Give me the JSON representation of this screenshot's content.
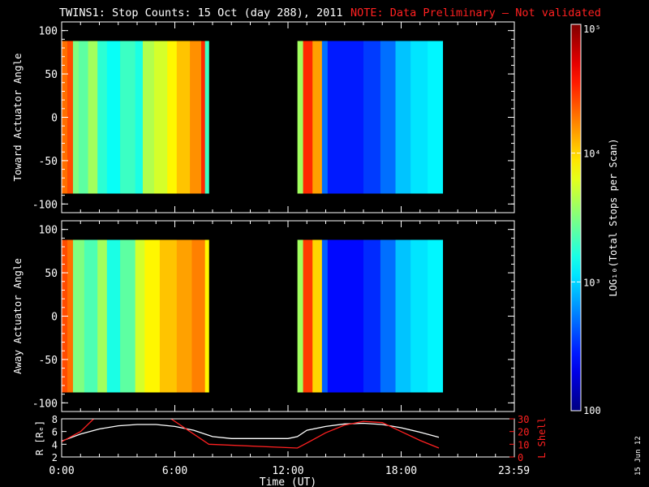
{
  "title": "TWINS1: Stop Counts: 15 Oct (day 288), 2011",
  "note": "NOTE: Data Preliminary – Not validated",
  "date_stamp": "15 Jun 12",
  "colors": {
    "background": "#000000",
    "axis": "#ffffff",
    "note": "#ff2020",
    "r_line": "#ffffff",
    "lshell_line": "#ff2020"
  },
  "chart_data": [
    {
      "type": "heatmap",
      "panel": "toward",
      "ylabel": "Toward Actuator Angle",
      "ylim": [
        -110,
        110
      ],
      "yticks": [
        100,
        50,
        0,
        -50,
        -100
      ],
      "xlim_hours": [
        0,
        24
      ],
      "data_ylim": [
        -88,
        88
      ],
      "segments": [
        {
          "x_start": 0.0,
          "x_end": 7.8,
          "bands": [
            [
              0.0,
              0.3,
              4.3
            ],
            [
              0.3,
              0.6,
              4.4
            ],
            [
              0.6,
              0.9,
              3.5
            ],
            [
              0.9,
              1.4,
              3.4
            ],
            [
              1.4,
              1.9,
              3.6
            ],
            [
              1.9,
              2.4,
              3.25
            ],
            [
              2.4,
              3.1,
              3.15
            ],
            [
              3.1,
              3.9,
              3.3
            ],
            [
              3.9,
              4.3,
              3.2
            ],
            [
              4.3,
              4.9,
              3.65
            ],
            [
              4.9,
              5.6,
              3.75
            ],
            [
              5.6,
              6.1,
              3.9
            ],
            [
              6.1,
              6.8,
              4.05
            ],
            [
              6.8,
              7.4,
              4.2
            ],
            [
              7.4,
              7.6,
              4.5
            ],
            [
              7.6,
              7.8,
              3.3
            ]
          ]
        },
        {
          "x_start": 12.5,
          "x_end": 20.2,
          "bands": [
            [
              12.5,
              12.8,
              3.6
            ],
            [
              12.8,
              13.3,
              4.5
            ],
            [
              13.3,
              13.8,
              4.15
            ],
            [
              13.8,
              14.1,
              2.7
            ],
            [
              14.1,
              16.0,
              2.45
            ],
            [
              16.0,
              16.9,
              2.55
            ],
            [
              16.9,
              17.7,
              2.7
            ],
            [
              17.7,
              18.5,
              2.95
            ],
            [
              18.5,
              19.4,
              3.05
            ],
            [
              19.4,
              20.2,
              3.1
            ]
          ]
        }
      ]
    },
    {
      "type": "heatmap",
      "panel": "away",
      "ylabel": "Away Actuator Angle",
      "ylim": [
        -110,
        110
      ],
      "yticks": [
        100,
        50,
        0,
        -50,
        -100
      ],
      "xlim_hours": [
        0,
        24
      ],
      "data_ylim": [
        -88,
        88
      ],
      "segments": [
        {
          "x_start": 0.0,
          "x_end": 7.8,
          "bands": [
            [
              0.0,
              0.3,
              4.4
            ],
            [
              0.3,
              0.6,
              4.3
            ],
            [
              0.6,
              1.2,
              3.5
            ],
            [
              1.2,
              1.9,
              3.35
            ],
            [
              1.9,
              2.4,
              3.6
            ],
            [
              2.4,
              3.1,
              3.2
            ],
            [
              3.1,
              3.9,
              3.4
            ],
            [
              3.9,
              4.4,
              3.75
            ],
            [
              4.4,
              5.2,
              3.9
            ],
            [
              5.2,
              6.1,
              4.05
            ],
            [
              6.1,
              6.9,
              4.15
            ],
            [
              6.9,
              7.6,
              4.25
            ],
            [
              7.6,
              7.8,
              3.9
            ]
          ]
        },
        {
          "x_start": 12.5,
          "x_end": 20.2,
          "bands": [
            [
              12.5,
              12.8,
              3.6
            ],
            [
              12.8,
              13.3,
              4.45
            ],
            [
              13.3,
              13.8,
              4.0
            ],
            [
              13.8,
              14.1,
              2.65
            ],
            [
              14.1,
              16.0,
              2.4
            ],
            [
              16.0,
              16.9,
              2.5
            ],
            [
              16.9,
              17.7,
              2.7
            ],
            [
              17.7,
              18.5,
              2.95
            ],
            [
              18.5,
              19.4,
              3.05
            ],
            [
              19.4,
              20.2,
              3.1
            ]
          ]
        }
      ]
    },
    {
      "type": "line",
      "panel": "orbit",
      "ylabel_left": "R [Rₑ]",
      "ylabel_right": "L Shell",
      "ylim_left": [
        2,
        8
      ],
      "yticks_left": [
        8,
        6,
        4,
        2
      ],
      "ylim_right": [
        0,
        30
      ],
      "yticks_right": [
        30,
        20,
        10,
        0
      ],
      "xlabel": "Time (UT)",
      "xticks": [
        "0:00",
        "6:00",
        "12:00",
        "18:00",
        "23:59"
      ],
      "xtick_hours": [
        0,
        6,
        12,
        18,
        23.98
      ],
      "series": [
        {
          "axis": "left",
          "x": [
            0,
            1,
            2,
            3,
            4,
            5,
            6,
            7,
            8,
            9,
            10,
            11,
            12,
            12.5,
            13,
            14,
            15,
            16,
            17,
            18,
            19,
            20
          ],
          "y": [
            4.5,
            5.6,
            6.4,
            6.9,
            7.1,
            7.1,
            6.8,
            6.2,
            5.2,
            4.9,
            4.9,
            4.9,
            4.9,
            5.2,
            6.2,
            6.8,
            7.2,
            7.3,
            7.1,
            6.6,
            5.9,
            5.1
          ]
        },
        {
          "axis": "right",
          "x": [
            0,
            1.0,
            1.7,
            2.0,
            5.5,
            5.8,
            7.8,
            12.5,
            13.0,
            14.0,
            15.0,
            16.0,
            17.0,
            18.0,
            19.0,
            20.0
          ],
          "y": [
            12,
            20,
            30,
            40,
            40,
            30,
            10,
            7,
            11,
            19,
            25,
            28,
            27,
            20,
            13,
            7
          ]
        }
      ]
    }
  ],
  "colorbar": {
    "label": "LOG₁₀(Total Stops per Scan)",
    "min_log": 2,
    "max_log": 5,
    "tick_labels": [
      "10⁵",
      "10⁴",
      "10³",
      "100"
    ],
    "tick_logs": [
      5,
      4,
      3,
      2
    ]
  }
}
